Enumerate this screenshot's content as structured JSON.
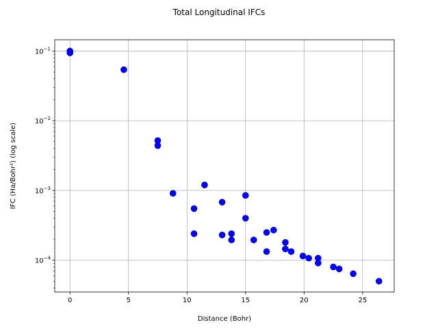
{
  "chart_data": {
    "type": "scatter",
    "title": "Total Longitudinal IFCs",
    "xlabel": "Distance (Bohr)",
    "ylabel": "IFC (Ha/Bohr²) (log scale)",
    "yscale": "log",
    "xlim": [
      -1.3,
      27.7
    ],
    "ylim": [
      3.5e-05,
      0.145
    ],
    "xticks": [
      0,
      5,
      10,
      15,
      20,
      25
    ],
    "xtick_labels": [
      "0",
      "5",
      "10",
      "15",
      "20",
      "25"
    ],
    "yticks": [
      0.0001,
      0.001,
      0.01,
      0.1
    ],
    "ytick_labels": [
      {
        "base": "10",
        "exp": "−4"
      },
      {
        "base": "10",
        "exp": "−3"
      },
      {
        "base": "10",
        "exp": "−2"
      },
      {
        "base": "10",
        "exp": "−1"
      }
    ],
    "grid": true,
    "marker_color": "#0000ff",
    "marker_edge_color": "#00007a",
    "points": [
      {
        "x": 0.0,
        "y": 0.1
      },
      {
        "x": 0.0,
        "y": 0.094
      },
      {
        "x": 4.6,
        "y": 0.054
      },
      {
        "x": 7.5,
        "y": 0.0052
      },
      {
        "x": 7.5,
        "y": 0.0044
      },
      {
        "x": 8.8,
        "y": 0.00091
      },
      {
        "x": 10.6,
        "y": 0.00055
      },
      {
        "x": 10.6,
        "y": 0.00024
      },
      {
        "x": 11.5,
        "y": 0.0012
      },
      {
        "x": 13.0,
        "y": 0.00068
      },
      {
        "x": 13.0,
        "y": 0.00023
      },
      {
        "x": 13.8,
        "y": 0.00024
      },
      {
        "x": 13.8,
        "y": 0.000195
      },
      {
        "x": 15.0,
        "y": 0.00085
      },
      {
        "x": 15.0,
        "y": 0.0004
      },
      {
        "x": 15.7,
        "y": 0.000195
      },
      {
        "x": 16.8,
        "y": 0.00025
      },
      {
        "x": 16.8,
        "y": 0.000133
      },
      {
        "x": 17.4,
        "y": 0.00027
      },
      {
        "x": 18.4,
        "y": 0.00018
      },
      {
        "x": 18.4,
        "y": 0.000145
      },
      {
        "x": 18.9,
        "y": 0.000133
      },
      {
        "x": 19.9,
        "y": 0.000115
      },
      {
        "x": 20.4,
        "y": 0.000107
      },
      {
        "x": 21.2,
        "y": 0.000107
      },
      {
        "x": 21.2,
        "y": 9.1e-05
      },
      {
        "x": 22.5,
        "y": 8e-05
      },
      {
        "x": 23.0,
        "y": 7.5e-05
      },
      {
        "x": 24.2,
        "y": 6.4e-05
      },
      {
        "x": 26.4,
        "y": 5e-05
      }
    ]
  }
}
